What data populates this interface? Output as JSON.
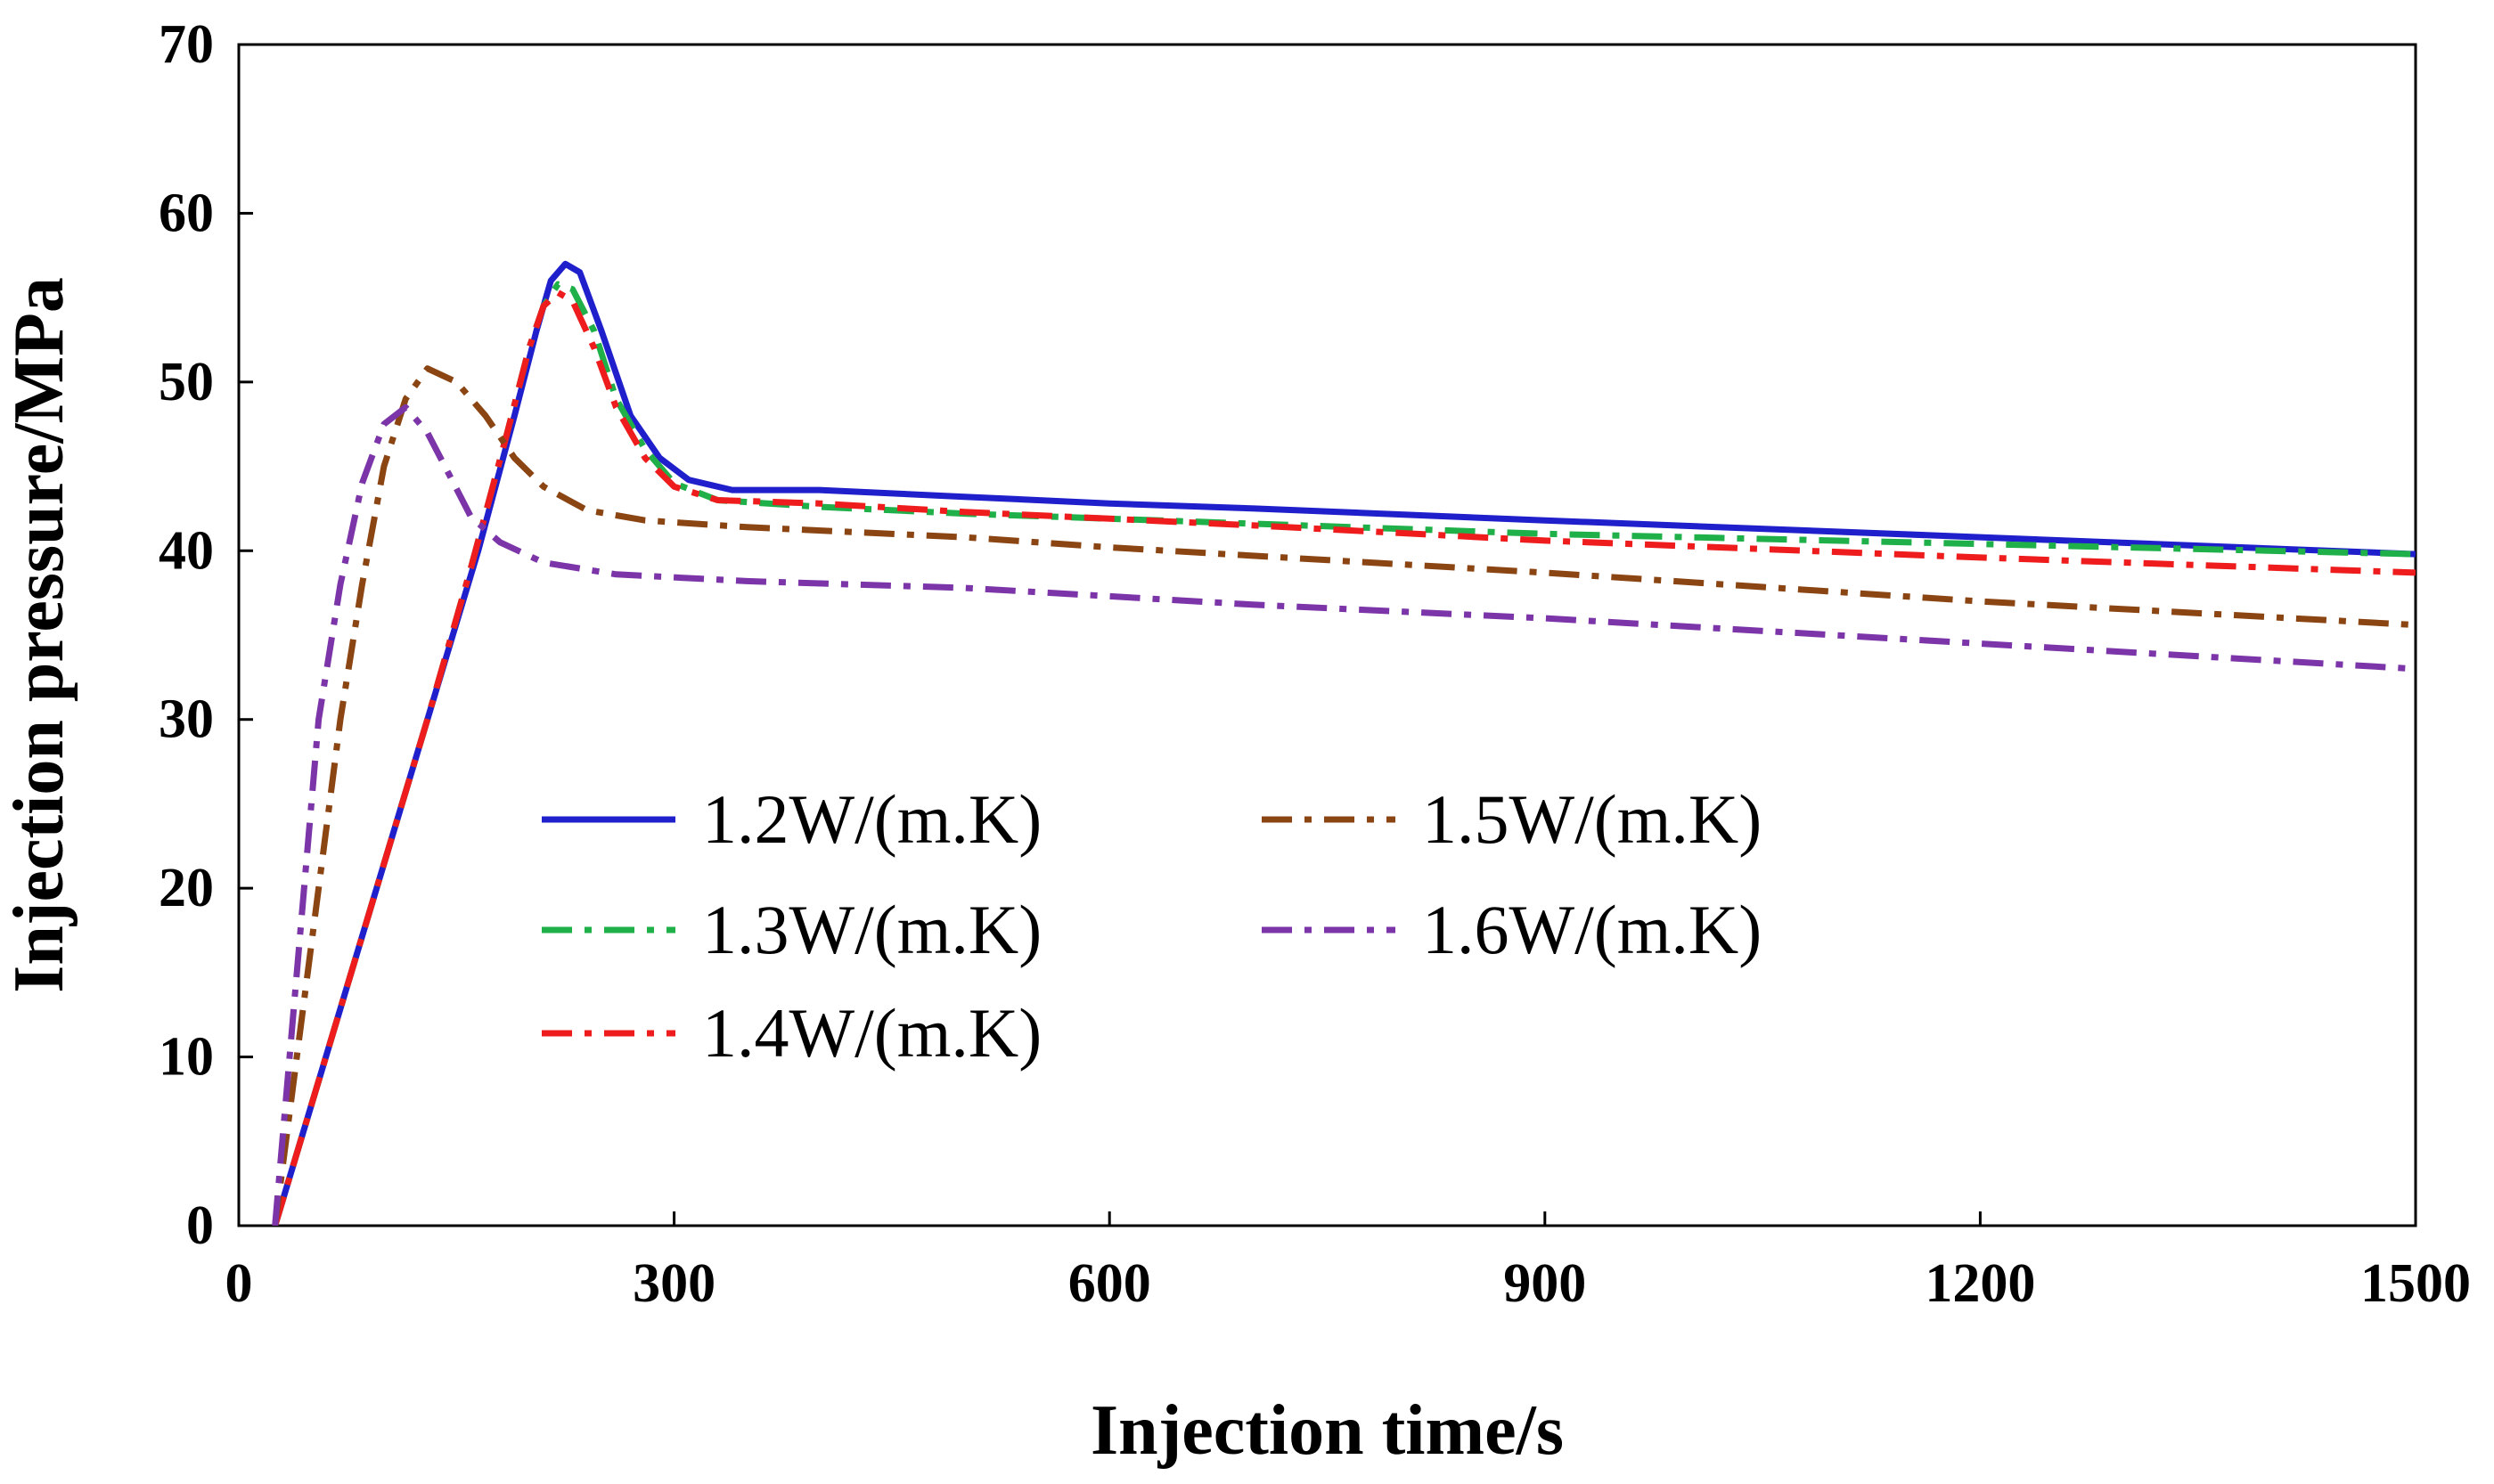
{
  "chart_data": {
    "type": "line",
    "title": "",
    "xlabel": "Injection time/s",
    "ylabel": "Injection pressure/MPa",
    "xlim": [
      0,
      1500
    ],
    "ylim": [
      0,
      70
    ],
    "xticks": [
      0,
      300,
      600,
      900,
      1200,
      1500
    ],
    "yticks": [
      0,
      10,
      20,
      30,
      40,
      50,
      60,
      70
    ],
    "xtick_labels": [
      "0",
      "300",
      "600",
      "900",
      "1200",
      "1500"
    ],
    "ytick_labels": [
      "0",
      "10",
      "20",
      "30",
      "40",
      "50",
      "60",
      "70"
    ],
    "grid": false,
    "legend_position": "center-left",
    "series": [
      {
        "name": "1.2W/(m.K)",
        "color": "#1f1fcc",
        "dash": "solid",
        "points": [
          [
            25,
            0
          ],
          [
            60,
            10
          ],
          [
            95,
            20
          ],
          [
            130,
            30
          ],
          [
            165,
            40
          ],
          [
            190,
            48
          ],
          [
            205,
            53
          ],
          [
            215,
            56
          ],
          [
            225,
            57
          ],
          [
            235,
            56.5
          ],
          [
            250,
            53
          ],
          [
            270,
            48
          ],
          [
            290,
            45.5
          ],
          [
            310,
            44.2
          ],
          [
            340,
            43.6
          ],
          [
            400,
            43.6
          ],
          [
            500,
            43.2
          ],
          [
            600,
            42.8
          ],
          [
            700,
            42.5
          ],
          [
            900,
            41.8
          ],
          [
            1200,
            40.8
          ],
          [
            1500,
            39.8
          ]
        ]
      },
      {
        "name": "1.3W/(m.K)",
        "color": "#1fb04a",
        "dash": "dashdot",
        "points": [
          [
            25,
            0
          ],
          [
            60,
            10
          ],
          [
            95,
            20
          ],
          [
            130,
            30
          ],
          [
            160,
            39
          ],
          [
            185,
            47
          ],
          [
            200,
            52
          ],
          [
            210,
            54.5
          ],
          [
            220,
            55.8
          ],
          [
            230,
            55.5
          ],
          [
            245,
            53
          ],
          [
            260,
            49
          ],
          [
            280,
            46
          ],
          [
            300,
            44
          ],
          [
            330,
            43
          ],
          [
            400,
            42.6
          ],
          [
            500,
            42.2
          ],
          [
            600,
            41.9
          ],
          [
            700,
            41.6
          ],
          [
            900,
            41
          ],
          [
            1200,
            40.4
          ],
          [
            1500,
            39.8
          ]
        ]
      },
      {
        "name": "1.4W/(m.K)",
        "color": "#ee1c1c",
        "dash": "dashdot",
        "points": [
          [
            25,
            0
          ],
          [
            60,
            10
          ],
          [
            95,
            20
          ],
          [
            130,
            30
          ],
          [
            160,
            39
          ],
          [
            185,
            47
          ],
          [
            200,
            52
          ],
          [
            210,
            54.5
          ],
          [
            220,
            55.3
          ],
          [
            230,
            54.8
          ],
          [
            245,
            52
          ],
          [
            260,
            48.5
          ],
          [
            280,
            45.5
          ],
          [
            300,
            43.8
          ],
          [
            330,
            43
          ],
          [
            400,
            42.8
          ],
          [
            500,
            42.3
          ],
          [
            600,
            41.9
          ],
          [
            700,
            41.5
          ],
          [
            900,
            40.6
          ],
          [
            1200,
            39.6
          ],
          [
            1500,
            38.7
          ]
        ]
      },
      {
        "name": "1.5W/(m.K)",
        "color": "#8b4513",
        "dash": "dashdot",
        "points": [
          [
            25,
            0
          ],
          [
            40,
            10
          ],
          [
            55,
            20
          ],
          [
            70,
            30
          ],
          [
            85,
            38
          ],
          [
            100,
            45
          ],
          [
            115,
            49
          ],
          [
            130,
            50.8
          ],
          [
            150,
            50
          ],
          [
            170,
            48
          ],
          [
            190,
            45.5
          ],
          [
            210,
            43.8
          ],
          [
            240,
            42.4
          ],
          [
            280,
            41.8
          ],
          [
            350,
            41.4
          ],
          [
            500,
            40.8
          ],
          [
            600,
            40.2
          ],
          [
            700,
            39.7
          ],
          [
            900,
            38.7
          ],
          [
            1200,
            37
          ],
          [
            1500,
            35.6
          ]
        ]
      },
      {
        "name": "1.6W/(m.K)",
        "color": "#7b35a8",
        "dash": "dashdot",
        "points": [
          [
            25,
            0
          ],
          [
            35,
            10
          ],
          [
            45,
            20
          ],
          [
            55,
            30
          ],
          [
            70,
            38
          ],
          [
            85,
            44
          ],
          [
            100,
            47.5
          ],
          [
            115,
            48.5
          ],
          [
            130,
            47
          ],
          [
            145,
            44.5
          ],
          [
            160,
            42
          ],
          [
            180,
            40.5
          ],
          [
            210,
            39.3
          ],
          [
            260,
            38.6
          ],
          [
            350,
            38.2
          ],
          [
            500,
            37.8
          ],
          [
            600,
            37.3
          ],
          [
            700,
            36.8
          ],
          [
            900,
            36
          ],
          [
            1200,
            34.5
          ],
          [
            1500,
            33
          ]
        ]
      }
    ]
  }
}
